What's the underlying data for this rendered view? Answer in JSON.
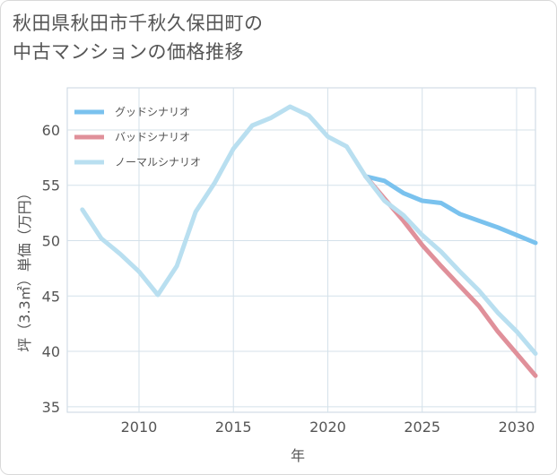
{
  "title": {
    "line1": "秋田県秋田市千秋久保田町の",
    "line2": "中古マンションの価格推移"
  },
  "chart_data": {
    "type": "line",
    "xlabel": "年",
    "ylabel": "坪（3.3㎡）単価（万円）",
    "xlim": [
      2006.2,
      2031
    ],
    "ylim": [
      34.5,
      63.8
    ],
    "xticks": [
      2010,
      2015,
      2020,
      2025,
      2030
    ],
    "yticks": [
      35,
      40,
      45,
      50,
      55,
      60
    ],
    "xtick_labels": [
      "2010",
      "2015",
      "2020",
      "2025",
      "2030"
    ],
    "ytick_labels": [
      "35",
      "40",
      "45",
      "50",
      "55",
      "60"
    ],
    "grid": true,
    "legend_position": "top-left",
    "series": [
      {
        "name": "グッドシナリオ",
        "color": "#7ac2ee",
        "x": [
          2022,
          2023,
          2024,
          2025,
          2026,
          2027,
          2028,
          2029,
          2030,
          2031
        ],
        "values": [
          55.8,
          55.4,
          54.3,
          53.6,
          53.4,
          52.4,
          51.8,
          51.2,
          50.5,
          49.8
        ]
      },
      {
        "name": "バッドシナリオ",
        "color": "#e0909a",
        "x": [
          2022,
          2023,
          2024,
          2025,
          2026,
          2027,
          2028,
          2029,
          2030,
          2031
        ],
        "values": [
          55.8,
          53.8,
          51.8,
          49.6,
          47.7,
          45.9,
          44.1,
          41.8,
          39.8,
          37.8
        ]
      },
      {
        "name": "ノーマルシナリオ",
        "color": "#b9dff0",
        "x": [
          2007,
          2008,
          2009,
          2010,
          2011,
          2012,
          2013,
          2014,
          2015,
          2016,
          2017,
          2018,
          2019,
          2020,
          2021,
          2022,
          2023,
          2024,
          2025,
          2026,
          2027,
          2028,
          2029,
          2030,
          2031
        ],
        "values": [
          52.8,
          50.2,
          48.8,
          47.2,
          45.1,
          47.7,
          52.6,
          55.2,
          58.3,
          60.4,
          61.1,
          62.1,
          61.3,
          59.4,
          58.5,
          55.8,
          53.6,
          52.3,
          50.5,
          49.0,
          47.2,
          45.5,
          43.5,
          41.8,
          39.8
        ]
      }
    ]
  }
}
